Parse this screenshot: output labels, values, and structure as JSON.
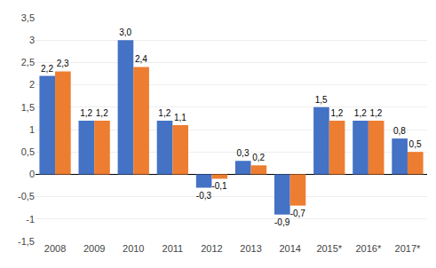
{
  "chart_data": {
    "type": "bar",
    "categories": [
      "2008",
      "2009",
      "2010",
      "2011",
      "2012",
      "2013",
      "2014",
      "2015*",
      "2016*",
      "2017*"
    ],
    "series": [
      {
        "color": "#4472C4",
        "values": [
          2.2,
          1.2,
          3.0,
          1.2,
          -0.3,
          0.3,
          -0.9,
          1.5,
          1.2,
          0.8
        ],
        "value_labels": [
          "2,2",
          "1,2",
          "3,0",
          "1,2",
          "-0,3",
          "0,3",
          "-0,9",
          "1,5",
          "1,2",
          "0,8"
        ]
      },
      {
        "color": "#ED7D31",
        "values": [
          2.3,
          1.2,
          2.4,
          1.1,
          -0.1,
          0.2,
          -0.7,
          1.2,
          1.2,
          0.5
        ],
        "value_labels": [
          "2,3",
          "1,2",
          "2,4",
          "1,1",
          "-0,1",
          "0,2",
          "-0,7",
          "1,2",
          "1,2",
          "0,5"
        ]
      }
    ],
    "ylim": [
      -1.5,
      3.5
    ],
    "yticks": [
      {
        "value": -1.5,
        "label": "-1,5"
      },
      -1,
      {
        "value": -0.5,
        "label": "-0,5"
      },
      0,
      {
        "value": 0.5,
        "label": "0,5"
      },
      1,
      {
        "value": 1.5,
        "label": "1,5"
      },
      2,
      {
        "value": 2.5,
        "label": "2,5"
      },
      3,
      {
        "value": 3.5,
        "label": "3,5"
      }
    ],
    "grid": true,
    "data_labels": true
  }
}
